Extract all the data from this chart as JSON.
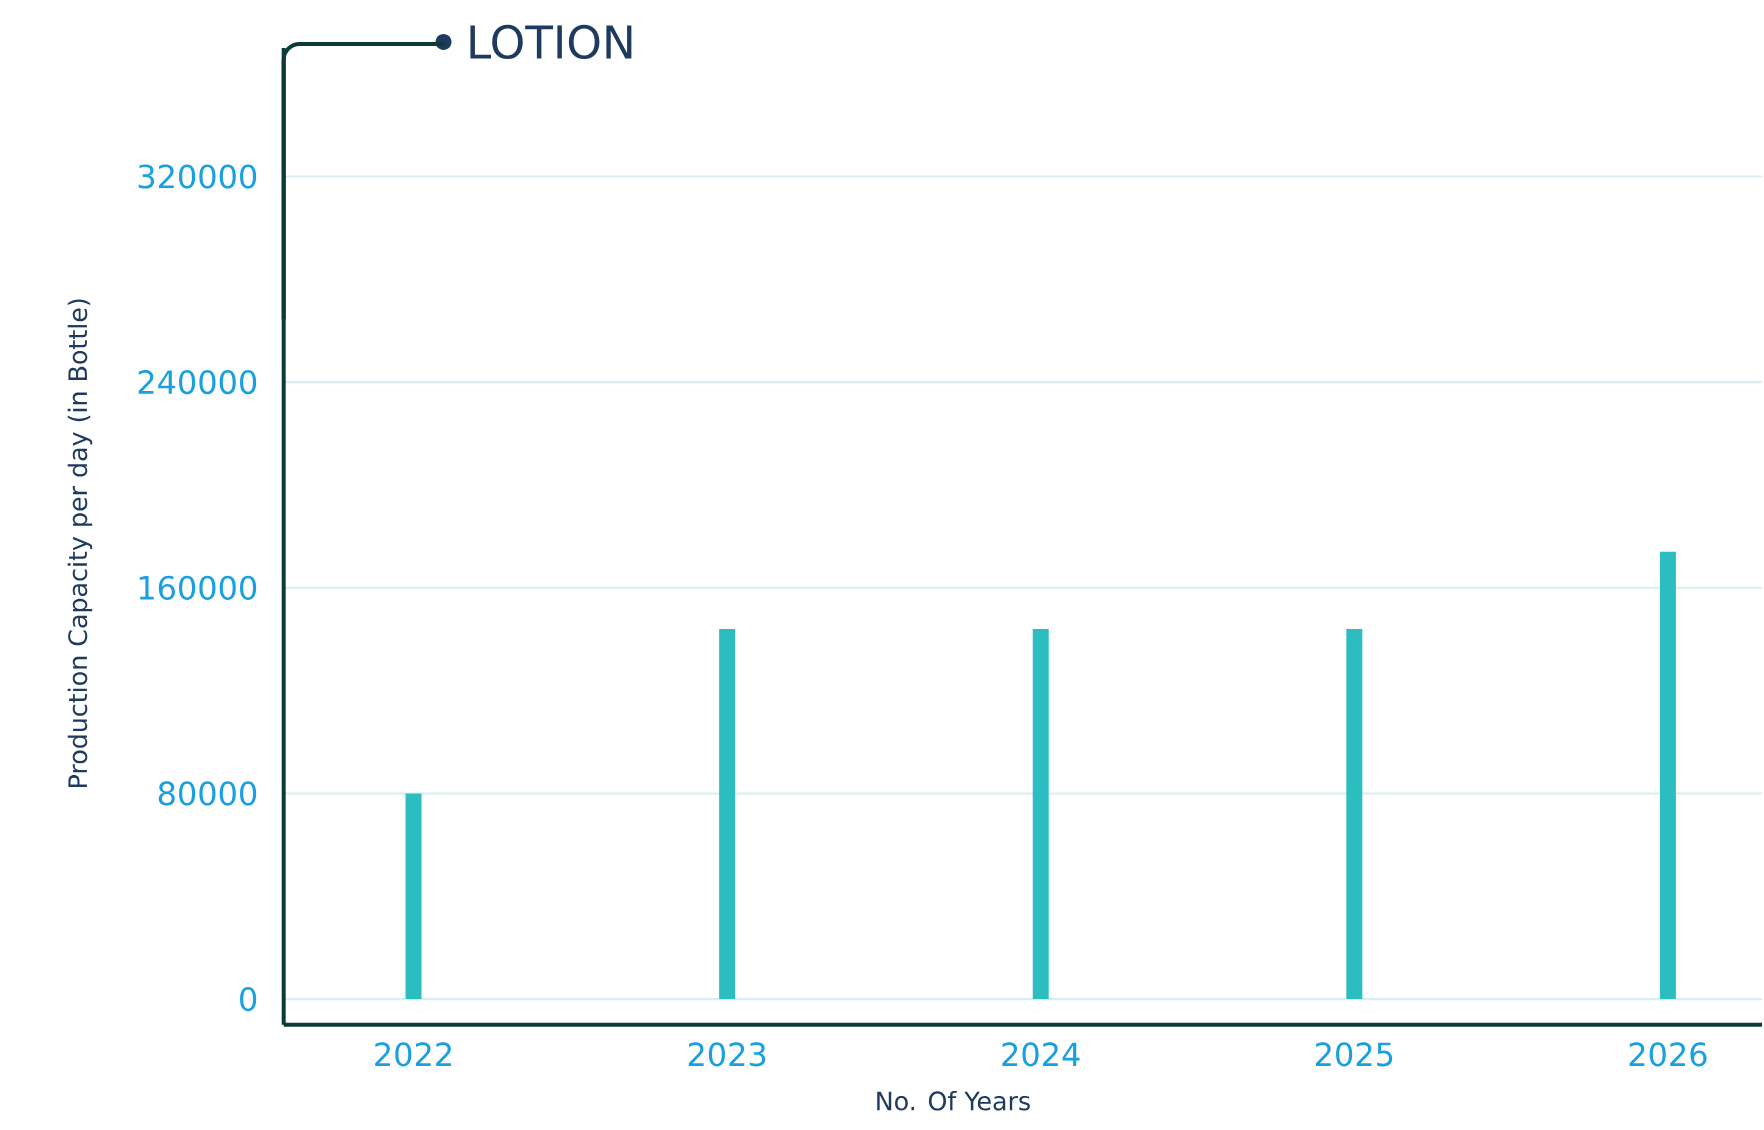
{
  "chart_data": {
    "type": "bar",
    "title": "LOTION",
    "xlabel": "No. Of Years",
    "ylabel": "Production Capacity per day (in Bottle)",
    "categories": [
      "2022",
      "2023",
      "2024",
      "2025",
      "2026"
    ],
    "values": [
      80000,
      144000,
      144000,
      144000,
      174000
    ],
    "color": "#2bbdc0",
    "ylim": [
      -10000,
      370000
    ],
    "yticks": [
      0,
      80000,
      160000,
      240000,
      320000
    ],
    "grid": "y"
  }
}
